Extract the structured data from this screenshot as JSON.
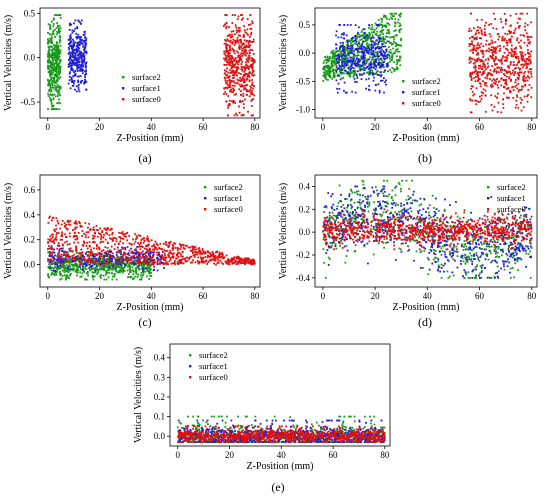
{
  "chart_data": [
    {
      "panel_label": "(a)",
      "type": "scatter",
      "xlabel": "Z-Position (mm)",
      "ylabel": "Vertical Velocities (m/s)",
      "xlim": [
        -3,
        82
      ],
      "ylim": [
        -0.68,
        0.56
      ],
      "xticks": [
        0,
        20,
        40,
        60,
        80
      ],
      "yticks": [
        -0.5,
        0.0,
        0.5
      ],
      "ytick_labels": [
        "-0.5",
        "0.0",
        "0.5"
      ],
      "legend_position": "center-right",
      "series": [
        {
          "name": "surface2",
          "color": "#1a9a1a",
          "clusters": [
            {
              "x": [
                0,
                5
              ],
              "y": [
                -0.58,
                0.48
              ],
              "n": 420
            }
          ]
        },
        {
          "name": "surface1",
          "color": "#1f1fd6",
          "clusters": [
            {
              "x": [
                8,
                15
              ],
              "y": [
                -0.38,
                0.42
              ],
              "n": 340
            }
          ]
        },
        {
          "name": "surface0",
          "color": "#e01010",
          "clusters": [
            {
              "x": [
                68,
                80
              ],
              "y": [
                -0.65,
                0.48
              ],
              "n": 520
            }
          ]
        }
      ]
    },
    {
      "panel_label": "(b)",
      "type": "scatter",
      "xlabel": "Z-Position (mm)",
      "ylabel": "Vertical Velocities (m/s)",
      "xlim": [
        -3,
        82
      ],
      "ylim": [
        -1.15,
        0.8
      ],
      "xticks": [
        0,
        20,
        40,
        60,
        80
      ],
      "yticks": [
        -1.0,
        -0.5,
        0.0,
        0.5
      ],
      "ytick_labels": [
        "-1.0",
        "-0.5",
        "0.0",
        "0.5"
      ],
      "legend_position": "center",
      "series": [
        {
          "name": "surface2",
          "color": "#1a9a1a",
          "clusters": [
            {
              "x": [
                0,
                30
              ],
              "y": [
                -0.5,
                0.7
              ],
              "n": 700,
              "shape": "fan"
            }
          ]
        },
        {
          "name": "surface1",
          "color": "#1f1fd6",
          "clusters": [
            {
              "x": [
                5,
                25
              ],
              "y": [
                -0.7,
                0.5
              ],
              "n": 380
            }
          ]
        },
        {
          "name": "surface0",
          "color": "#e01010",
          "clusters": [
            {
              "x": [
                56,
                80
              ],
              "y": [
                -1.05,
                0.7
              ],
              "n": 620
            }
          ]
        }
      ]
    },
    {
      "panel_label": "(c)",
      "type": "scatter",
      "xlabel": "Z-Position (mm)",
      "ylabel": "Vertical Velocities (m/s)",
      "xlim": [
        -3,
        82
      ],
      "ylim": [
        -0.18,
        0.72
      ],
      "xticks": [
        0,
        20,
        40,
        60,
        80
      ],
      "yticks": [
        0.0,
        0.2,
        0.4,
        0.6
      ],
      "ytick_labels": [
        "0.0",
        "0.2",
        "0.4",
        "0.6"
      ],
      "legend_position": "top-right",
      "series": [
        {
          "name": "surface2",
          "color": "#1a9a1a",
          "clusters": [
            {
              "x": [
                0,
                40
              ],
              "y": [
                -0.12,
                0.1
              ],
              "n": 700
            }
          ]
        },
        {
          "name": "surface1",
          "color": "#1f1fd6",
          "clusters": [
            {
              "x": [
                0,
                45
              ],
              "y": [
                -0.05,
                0.15
              ],
              "n": 300
            }
          ]
        },
        {
          "name": "surface0",
          "color": "#e01010",
          "clusters": [
            {
              "x": [
                0,
                80
              ],
              "y": [
                0.0,
                0.4
              ],
              "n": 900,
              "shape": "taper"
            }
          ]
        }
      ]
    },
    {
      "panel_label": "(d)",
      "type": "scatter",
      "xlabel": "Z-Position (mm)",
      "ylabel": "Vertical Velocities (m/s)",
      "xlim": [
        -3,
        82
      ],
      "ylim": [
        -0.48,
        0.5
      ],
      "xticks": [
        0,
        20,
        40,
        60,
        80
      ],
      "yticks": [
        -0.4,
        -0.2,
        0.0,
        0.2,
        0.4
      ],
      "ytick_labels": [
        "-0.4",
        "-0.2",
        "0.0",
        "0.2",
        "0.4"
      ],
      "legend_position": "top-right",
      "series": [
        {
          "name": "surface2",
          "color": "#1a9a1a",
          "clusters": [
            {
              "x": [
                0,
                80
              ],
              "y": [
                -0.4,
                0.45
              ],
              "n": 650,
              "shape": "wave"
            }
          ]
        },
        {
          "name": "surface1",
          "color": "#1f1fd6",
          "clusters": [
            {
              "x": [
                0,
                80
              ],
              "y": [
                -0.4,
                0.4
              ],
              "n": 650,
              "shape": "wave"
            }
          ]
        },
        {
          "name": "surface0",
          "color": "#e01010",
          "clusters": [
            {
              "x": [
                0,
                80
              ],
              "y": [
                -0.15,
                0.2
              ],
              "n": 900,
              "shape": "band"
            }
          ]
        }
      ]
    },
    {
      "panel_label": "(e)",
      "type": "scatter",
      "xlabel": "Z-Position (mm)",
      "ylabel": "Vertical Velocities (m/s)",
      "xlim": [
        -3,
        82
      ],
      "ylim": [
        -0.05,
        0.47
      ],
      "xticks": [
        0,
        20,
        40,
        60,
        80
      ],
      "yticks": [
        0.0,
        0.1,
        0.2,
        0.3,
        0.4
      ],
      "ytick_labels": [
        "0.0",
        "0.1",
        "0.2",
        "0.3",
        "0.4"
      ],
      "legend_position": "top-left",
      "series": [
        {
          "name": "surface2",
          "color": "#1a9a1a",
          "clusters": [
            {
              "x": [
                0,
                80
              ],
              "y": [
                -0.03,
                0.1
              ],
              "n": 700,
              "shape": "flat"
            }
          ]
        },
        {
          "name": "surface1",
          "color": "#1f1fd6",
          "clusters": [
            {
              "x": [
                0,
                80
              ],
              "y": [
                -0.03,
                0.08
              ],
              "n": 700,
              "shape": "flat"
            }
          ]
        },
        {
          "name": "surface0",
          "color": "#e01010",
          "clusters": [
            {
              "x": [
                0,
                80
              ],
              "y": [
                -0.03,
                0.05
              ],
              "n": 900,
              "shape": "flat"
            }
          ]
        }
      ]
    }
  ]
}
